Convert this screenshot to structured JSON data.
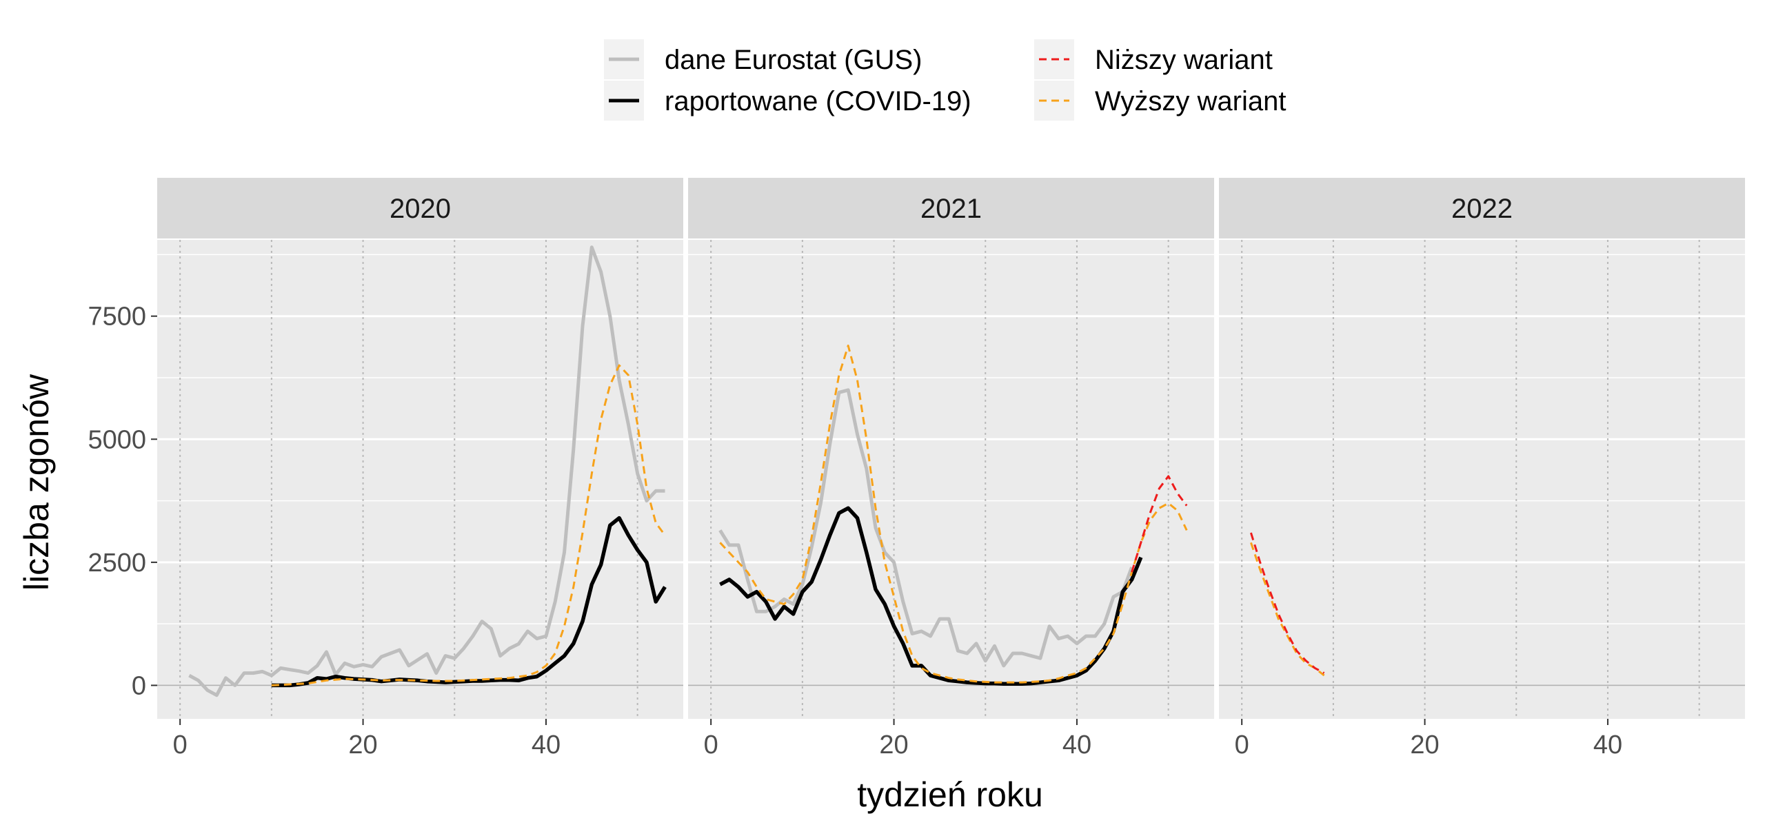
{
  "chart_data": {
    "type": "line",
    "xlabel": "tydzień roku",
    "ylabel": "liczba zgonów",
    "xlim": [
      -2.5,
      55
    ],
    "ylim": [
      -680,
      9050
    ],
    "x_ticks": [
      0,
      20,
      40
    ],
    "y_ticks": [
      0,
      2500,
      5000,
      7500
    ],
    "y_tick_labels": [
      "0",
      "2500",
      "5000",
      "7500"
    ],
    "legend": {
      "position": "top",
      "items": [
        {
          "label": "dane Eurostat (GUS)",
          "color": "#bebebe",
          "style": "solid"
        },
        {
          "label": "raportowane (COVID-19)",
          "color": "#000000",
          "style": "solid"
        },
        {
          "label": "Niższy wariant",
          "color": "#ee1c1c",
          "style": "dashed"
        },
        {
          "label": "Wyższy wariant",
          "color": "#f7a21a",
          "style": "dashed"
        }
      ]
    },
    "colors": {
      "eurostat": "#bebebe",
      "reported": "#000000",
      "lower": "#ee1c1c",
      "higher": "#f7a21a",
      "panel_bg": "#ebebeb",
      "strip_bg": "#d9d9d9"
    },
    "panels": [
      {
        "title": "2020",
        "series": {
          "eurostat": {
            "x": [
              1,
              2,
              3,
              4,
              5,
              6,
              7,
              8,
              9,
              10,
              11,
              12,
              13,
              14,
              15,
              16,
              17,
              18,
              19,
              20,
              21,
              22,
              23,
              24,
              25,
              26,
              27,
              28,
              29,
              30,
              31,
              32,
              33,
              34,
              35,
              36,
              37,
              38,
              39,
              40,
              41,
              42,
              43,
              44,
              45,
              46,
              47,
              48,
              49,
              50,
              51,
              52,
              53
            ],
            "y": [
              200,
              100,
              -100,
              -200,
              150,
              0,
              250,
              250,
              280,
              200,
              350,
              320,
              290,
              250,
              400,
              680,
              220,
              450,
              380,
              420,
              380,
              580,
              650,
              720,
              400,
              520,
              640,
              250,
              600,
              550,
              750,
              1000,
              1300,
              1150,
              600,
              750,
              840,
              1100,
              950,
              1000,
              1700,
              2700,
              4800,
              7300,
              8900,
              8400,
              7500,
              6200,
              5300,
              4300,
              3750,
              3950,
              3950
            ]
          },
          "reported": {
            "x": [
              10,
              11,
              12,
              13,
              14,
              15,
              16,
              17,
              18,
              19,
              20,
              21,
              22,
              23,
              24,
              25,
              26,
              27,
              28,
              29,
              30,
              31,
              32,
              33,
              34,
              35,
              36,
              37,
              38,
              39,
              40,
              41,
              42,
              43,
              44,
              45,
              46,
              47,
              48,
              49,
              50,
              51,
              52,
              53
            ],
            "y": [
              0,
              0,
              0,
              20,
              50,
              150,
              130,
              180,
              150,
              130,
              120,
              110,
              80,
              100,
              120,
              110,
              100,
              80,
              70,
              60,
              70,
              80,
              90,
              90,
              100,
              110,
              110,
              100,
              150,
              180,
              300,
              450,
              600,
              850,
              1300,
              2050,
              2450,
              3250,
              3400,
              3050,
              2750,
              2500,
              1700,
              2000
            ]
          },
          "higher": {
            "x": [
              10,
              12,
              14,
              16,
              18,
              20,
              22,
              24,
              26,
              28,
              30,
              32,
              34,
              36,
              38,
              39,
              40,
              41,
              42,
              43,
              44,
              45,
              46,
              47,
              48,
              49,
              50,
              51,
              52,
              53
            ],
            "y": [
              0,
              20,
              40,
              100,
              130,
              120,
              100,
              110,
              100,
              90,
              90,
              110,
              130,
              150,
              200,
              270,
              400,
              650,
              1200,
              2000,
              3100,
              4300,
              5400,
              6100,
              6500,
              6300,
              5300,
              4000,
              3300,
              3050
            ]
          },
          "lower": {
            "x": [],
            "y": []
          }
        }
      },
      {
        "title": "2021",
        "series": {
          "eurostat": {
            "x": [
              1,
              2,
              3,
              4,
              5,
              6,
              7,
              8,
              9,
              10,
              11,
              12,
              13,
              14,
              15,
              16,
              17,
              18,
              19,
              20,
              21,
              22,
              23,
              24,
              25,
              26,
              27,
              28,
              29,
              30,
              31,
              32,
              33,
              34,
              35,
              36,
              37,
              38,
              39,
              40,
              41,
              42,
              43,
              44,
              45,
              46
            ],
            "y": [
              3150,
              2850,
              2850,
              2150,
              1500,
              1500,
              1600,
              1750,
              1650,
              2050,
              2800,
              3700,
              4900,
              5950,
              6000,
              5100,
              4400,
              3200,
              2700,
              2500,
              1700,
              1050,
              1100,
              1000,
              1350,
              1350,
              700,
              650,
              850,
              500,
              800,
              400,
              650,
              650,
              600,
              550,
              1200,
              950,
              1000,
              850,
              1000,
              1000,
              1250,
              1800,
              1900,
              2400
            ]
          },
          "reported": {
            "x": [
              1,
              2,
              3,
              4,
              5,
              6,
              7,
              8,
              9,
              10,
              11,
              12,
              13,
              14,
              15,
              16,
              17,
              18,
              19,
              20,
              21,
              22,
              23,
              24,
              25,
              26,
              27,
              28,
              29,
              30,
              31,
              32,
              33,
              34,
              35,
              36,
              37,
              38,
              39,
              40,
              41,
              42,
              43,
              44,
              45,
              46,
              47,
              48
            ],
            "y": [
              2050,
              2150,
              2000,
              1800,
              1900,
              1700,
              1350,
              1600,
              1450,
              1900,
              2100,
              2550,
              3050,
              3500,
              3600,
              3400,
              2700,
              1950,
              1650,
              1200,
              850,
              400,
              400,
              200,
              150,
              100,
              80,
              60,
              50,
              40,
              40,
              30,
              30,
              30,
              40,
              60,
              80,
              100,
              150,
              200,
              300,
              500,
              750,
              1100,
              1900,
              2150,
              2600,
              null
            ]
          },
          "higher": {
            "x": [
              1,
              2,
              3,
              4,
              5,
              6,
              7,
              8,
              9,
              10,
              11,
              12,
              13,
              14,
              15,
              16,
              17,
              18,
              19,
              20,
              21,
              22,
              23,
              24,
              25,
              26,
              27,
              28,
              29,
              30,
              31,
              32,
              33,
              34,
              35,
              36,
              37,
              38,
              39,
              40,
              41,
              42,
              43,
              44,
              45,
              46,
              47,
              48,
              49,
              50,
              51,
              52
            ],
            "y": [
              2900,
              2700,
              2500,
              2300,
              2000,
              1750,
              1700,
              1650,
              1850,
              2150,
              3000,
              4100,
              5300,
              6300,
              6900,
              6200,
              5000,
              3600,
              2500,
              1800,
              1100,
              600,
              350,
              250,
              200,
              150,
              120,
              100,
              80,
              70,
              60,
              60,
              60,
              60,
              70,
              80,
              100,
              140,
              200,
              250,
              350,
              550,
              750,
              1050,
              1650,
              2300,
              2900,
              3350,
              3600,
              3700,
              3550,
              3150
            ]
          },
          "lower": {
            "x": [
              46,
              47,
              48,
              49,
              50,
              51,
              52
            ],
            "y": [
              2300,
              2900,
              3500,
              4000,
              4250,
              3900,
              3650
            ]
          }
        }
      },
      {
        "title": "2022",
        "series": {
          "eurostat": {
            "x": [],
            "y": []
          },
          "reported": {
            "x": [],
            "y": []
          },
          "higher": {
            "x": [
              1,
              2,
              3,
              4,
              5,
              6,
              7,
              8,
              9
            ],
            "y": [
              2900,
              2350,
              1850,
              1350,
              1000,
              650,
              450,
              350,
              200
            ]
          },
          "lower": {
            "x": [
              1,
              2,
              3,
              4,
              5,
              6,
              7,
              8,
              9
            ],
            "y": [
              3100,
              2500,
              1950,
              1450,
              1050,
              700,
              500,
              350,
              250
            ]
          }
        }
      }
    ]
  }
}
